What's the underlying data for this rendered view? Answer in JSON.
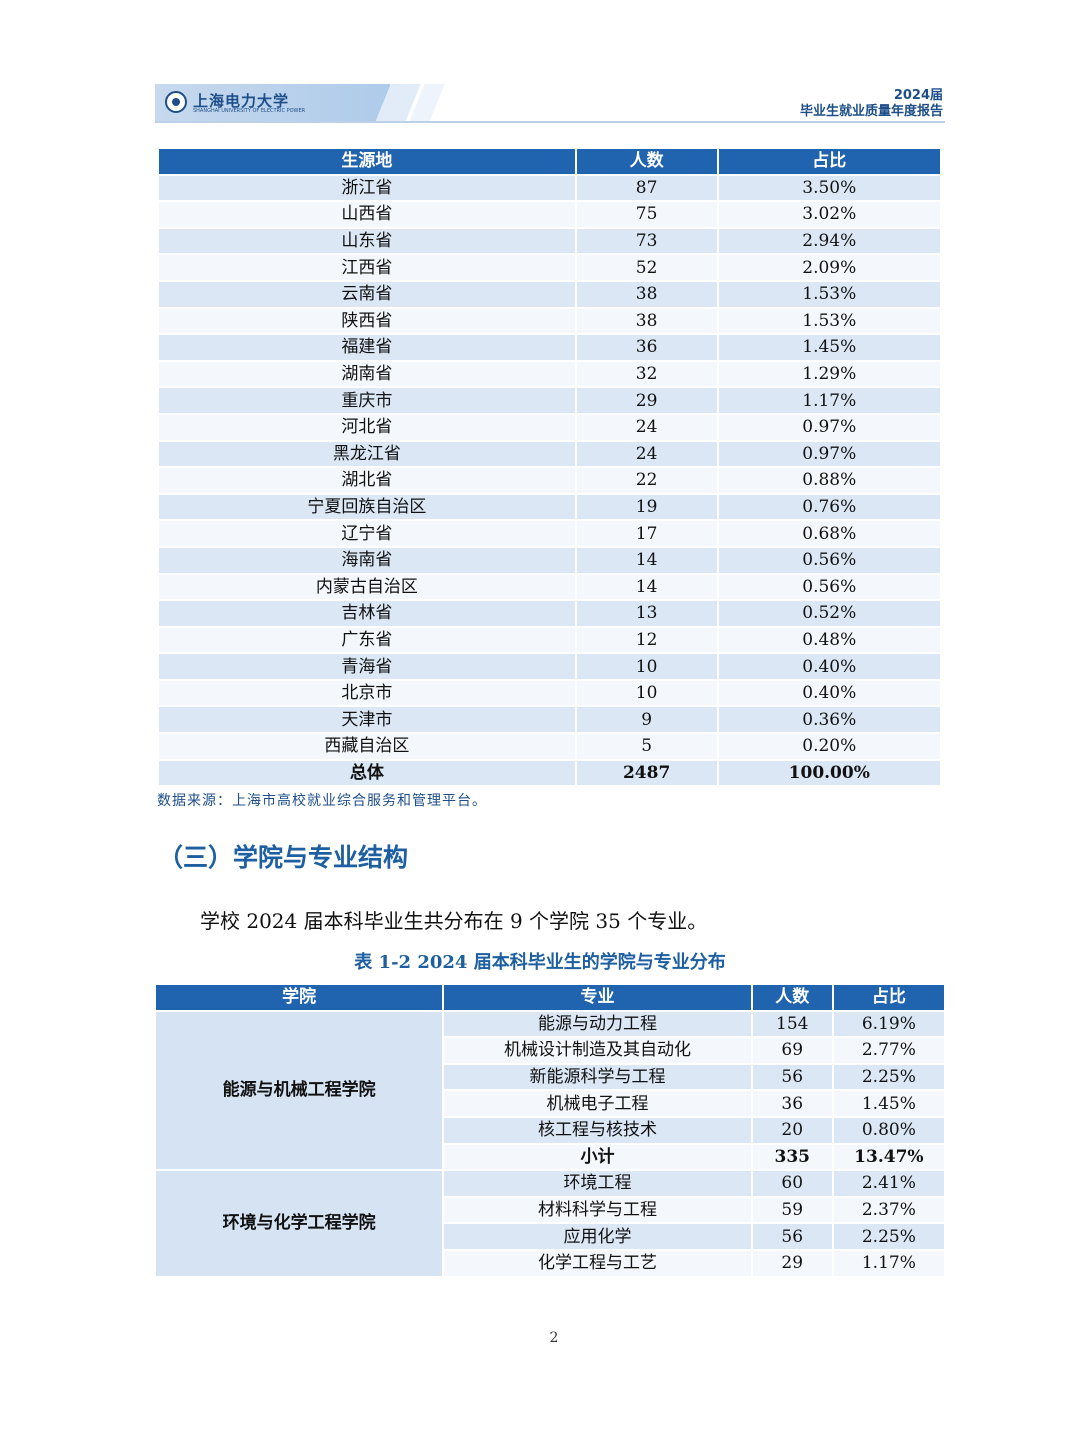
{
  "header": {
    "logo_text": "上海电力大学",
    "logo_sub": "SHANGHAI UNIVERSITY OF ELECTRIC POWER",
    "year": "2024届",
    "title": "毕业生就业质量年度报告"
  },
  "table1": {
    "headers": [
      "生源地",
      "人数",
      "占比"
    ],
    "rows": [
      [
        "浙江省",
        "87",
        "3.50%"
      ],
      [
        "山西省",
        "75",
        "3.02%"
      ],
      [
        "山东省",
        "73",
        "2.94%"
      ],
      [
        "江西省",
        "52",
        "2.09%"
      ],
      [
        "云南省",
        "38",
        "1.53%"
      ],
      [
        "陕西省",
        "38",
        "1.53%"
      ],
      [
        "福建省",
        "36",
        "1.45%"
      ],
      [
        "湖南省",
        "32",
        "1.29%"
      ],
      [
        "重庆市",
        "29",
        "1.17%"
      ],
      [
        "河北省",
        "24",
        "0.97%"
      ],
      [
        "黑龙江省",
        "24",
        "0.97%"
      ],
      [
        "湖北省",
        "22",
        "0.88%"
      ],
      [
        "宁夏回族自治区",
        "19",
        "0.76%"
      ],
      [
        "辽宁省",
        "17",
        "0.68%"
      ],
      [
        "海南省",
        "14",
        "0.56%"
      ],
      [
        "内蒙古自治区",
        "14",
        "0.56%"
      ],
      [
        "吉林省",
        "13",
        "0.52%"
      ],
      [
        "广东省",
        "12",
        "0.48%"
      ],
      [
        "青海省",
        "10",
        "0.40%"
      ],
      [
        "北京市",
        "10",
        "0.40%"
      ],
      [
        "天津市",
        "9",
        "0.36%"
      ],
      [
        "西藏自治区",
        "5",
        "0.20%"
      ]
    ],
    "total": [
      "总体",
      "2487",
      "100.00%"
    ]
  },
  "source_note": "数据来源：上海市高校就业综合服务和管理平台。",
  "section_title": "（三）学院与专业结构",
  "paragraph": "学校 2024 届本科毕业生共分布在 9 个学院 35 个专业。",
  "table2_caption": "表 1-2  2024 届本科毕业生的学院与专业分布",
  "table2": {
    "headers": [
      "学院",
      "专业",
      "人数",
      "占比"
    ],
    "colleges": [
      {
        "name": "能源与机械工程学院",
        "majors": [
          [
            "能源与动力工程",
            "154",
            "6.19%"
          ],
          [
            "机械设计制造及其自动化",
            "69",
            "2.77%"
          ],
          [
            "新能源科学与工程",
            "56",
            "2.25%"
          ],
          [
            "机械电子工程",
            "36",
            "1.45%"
          ],
          [
            "核工程与核技术",
            "20",
            "0.80%"
          ]
        ],
        "subtotal": [
          "小计",
          "335",
          "13.47%"
        ]
      },
      {
        "name": "环境与化学工程学院",
        "majors": [
          [
            "环境工程",
            "60",
            "2.41%"
          ],
          [
            "材料科学与工程",
            "59",
            "2.37%"
          ],
          [
            "应用化学",
            "56",
            "2.25%"
          ],
          [
            "化学工程与工艺",
            "29",
            "1.17%"
          ]
        ]
      }
    ]
  },
  "page_number": "2"
}
